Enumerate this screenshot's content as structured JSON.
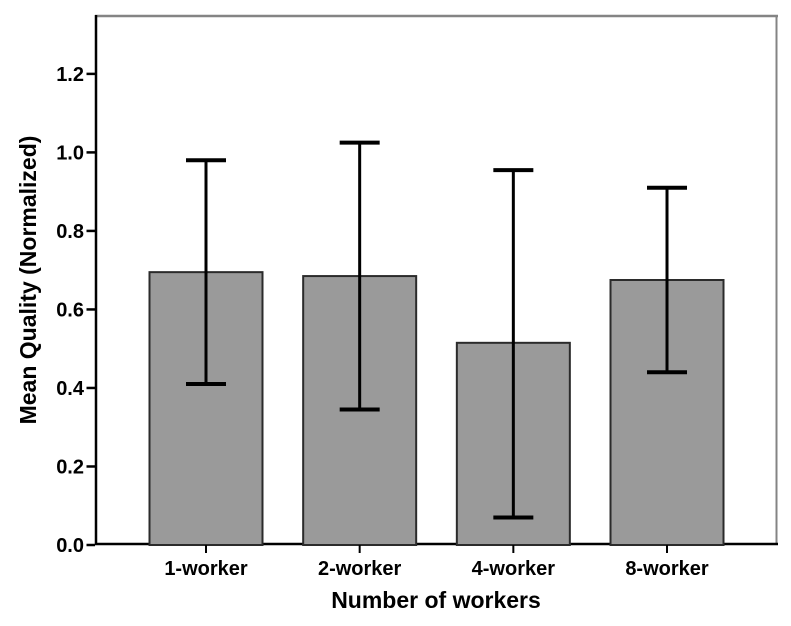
{
  "chart_data": {
    "type": "bar",
    "title": "",
    "xlabel": "Number of workers",
    "ylabel": "Mean Quality (Normalized)",
    "categories": [
      "1-worker",
      "2-worker",
      "4-worker",
      "8-worker"
    ],
    "values": [
      0.695,
      0.685,
      0.515,
      0.675
    ],
    "error_low": [
      0.41,
      0.345,
      0.07,
      0.44
    ],
    "error_high": [
      0.98,
      1.025,
      0.955,
      0.91
    ],
    "y_ticks": [
      0.0,
      0.2,
      0.4,
      0.6,
      0.8,
      1.0,
      1.2
    ],
    "y_tick_labels": [
      "0.0",
      "0.2",
      "0.4",
      "0.6",
      "0.8",
      "1.0",
      "1.2"
    ],
    "ylim": [
      0,
      1.35
    ],
    "grid": false,
    "legend": false,
    "colors": {
      "bar_fill": "#9a9a9a",
      "bar_border": "#2b2b2b",
      "error_bar": "#000000",
      "axis_line": "#000000",
      "frame_line": "#848484",
      "background": "#ffffff",
      "text": "#000000"
    }
  }
}
